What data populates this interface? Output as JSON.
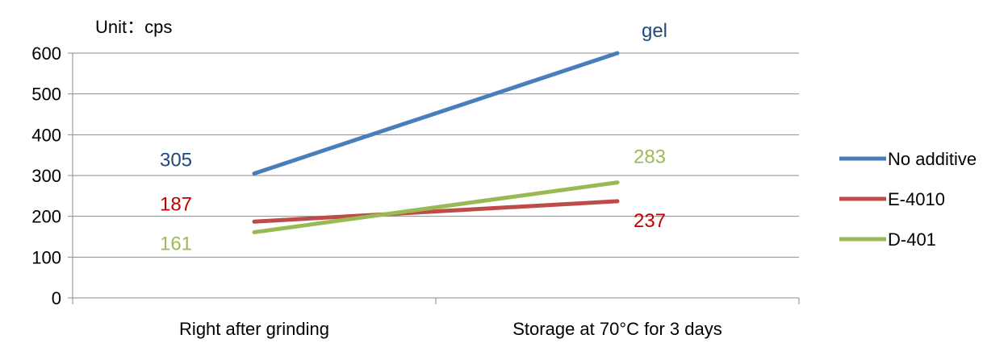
{
  "chart_data": {
    "type": "line",
    "categories": [
      "Right after grinding",
      "Storage at 70°C for 3 days"
    ],
    "ylim": [
      0,
      600
    ],
    "yticks": [
      0,
      100,
      200,
      300,
      400,
      500,
      600
    ],
    "grid": true,
    "legend_position": "right",
    "unit_label": "Unit：cps",
    "series": [
      {
        "name": "No additive",
        "values": [
          305,
          600
        ],
        "labels": [
          "305",
          "gel"
        ],
        "color": "#4a7ebb",
        "label_color": "#1f497d"
      },
      {
        "name": "E-4010",
        "values": [
          187,
          237
        ],
        "labels": [
          "187",
          "237"
        ],
        "color": "#be4b48",
        "label_color": "#c00000"
      },
      {
        "name": "D-401",
        "values": [
          161,
          283
        ],
        "labels": [
          "161",
          "283"
        ],
        "color": "#98b954",
        "label_color": "#9bbb59"
      }
    ]
  }
}
